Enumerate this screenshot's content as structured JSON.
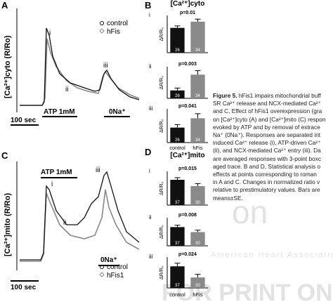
{
  "panels": {
    "A": {
      "label": "A",
      "y_label": "[Ca²⁺]cyto (R/Ro)",
      "legend": [
        "control",
        "hFis"
      ],
      "stimuli": [
        "ATP 1mM",
        "0Na⁺"
      ],
      "scale_bar": "100 sec",
      "markers": [
        "i",
        "ii",
        "iii"
      ]
    },
    "B": {
      "label": "B",
      "title": "[Ca²⁺]cyto",
      "categories": [
        "control",
        "hFis"
      ],
      "colors": [
        "#111111",
        "#8a8a8a"
      ],
      "y_label": "ΔR/R₀",
      "subpanels": [
        {
          "roman": "i",
          "p": "p=0.01",
          "values": [
            1.0,
            1.25
          ],
          "errors": [
            0.08,
            0.1
          ],
          "n": [
            26,
            34
          ],
          "ylim": [
            0,
            1.5
          ]
        },
        {
          "roman": "ii",
          "p": "p=0.003",
          "values": [
            0.1,
            0.3
          ],
          "errors": [
            0.03,
            0.05
          ],
          "n": [
            26,
            34
          ],
          "ylim": [
            0,
            0.4
          ]
        },
        {
          "roman": "iii",
          "p": "p=0.041",
          "values": [
            0.4,
            0.65
          ],
          "errors": [
            0.08,
            0.12
          ],
          "n": [
            26,
            34
          ],
          "ylim": [
            0,
            0.9
          ]
        }
      ]
    },
    "C": {
      "label": "C",
      "y_label": "[Ca²⁺]mito (R/Ro)",
      "legend": [
        "control",
        "hFis1"
      ],
      "stimuli": [
        "ATP 1mM",
        "0Na⁺"
      ],
      "scale_bar": "100 sec",
      "markers": [
        "i",
        "ii",
        "iii"
      ]
    },
    "D": {
      "label": "D",
      "title": "[Ca²⁺]mito",
      "categories": [
        "control",
        "hFis"
      ],
      "colors": [
        "#111111",
        "#8a8a8a"
      ],
      "y_label": "ΔR/R₀",
      "subpanels": [
        {
          "roman": "i",
          "p": "p=0.015",
          "values": [
            0.6,
            0.45
          ],
          "errors": [
            0.05,
            0.06
          ],
          "n": [
            37,
            30
          ],
          "ylim": [
            0,
            0.8
          ]
        },
        {
          "roman": "ii",
          "p": "p=0.008",
          "values": [
            0.3,
            0.22
          ],
          "errors": [
            0.03,
            0.03
          ],
          "n": [
            37,
            30
          ],
          "ylim": [
            0,
            0.45
          ]
        },
        {
          "roman": "iii",
          "p": "p=0.024",
          "values": [
            0.35,
            0.17
          ],
          "errors": [
            0.05,
            0.05
          ],
          "n": [
            37,
            30
          ],
          "ylim": [
            0,
            0.5
          ]
        }
      ]
    }
  },
  "caption": {
    "label": "Figure 5.",
    "lines": [
      "hFis1 impairs mitochondrial buff",
      "SR Ca²⁺ release and NCX-mediated Ca²⁺",
      "and C, Effect of hFis1 overexpression (gra",
      "on [Ca²⁺]cyto (A) and [Ca²⁺]mito (C) respon",
      "evoked by ATP and by removal of extrace",
      "Na⁺ (0Na⁺). Responses are separated int",
      "induced Ca²⁺ release (i), ATP-driven Ca²⁺",
      "(ii), and NCX-mediated Ca²⁺ entry (iii). Da",
      "are averaged responses with 3-point boxc",
      "aged trace. B and D, Statistical analysis o",
      "effects at points corresponding to roman",
      "in A and C. Changes in normalized ratio v",
      "relative to prestimulatory values. Bars are",
      "means±SE."
    ]
  },
  "watermark": [
    "on",
    "American Heart Association",
    "FOR PRINT ONLY"
  ]
}
